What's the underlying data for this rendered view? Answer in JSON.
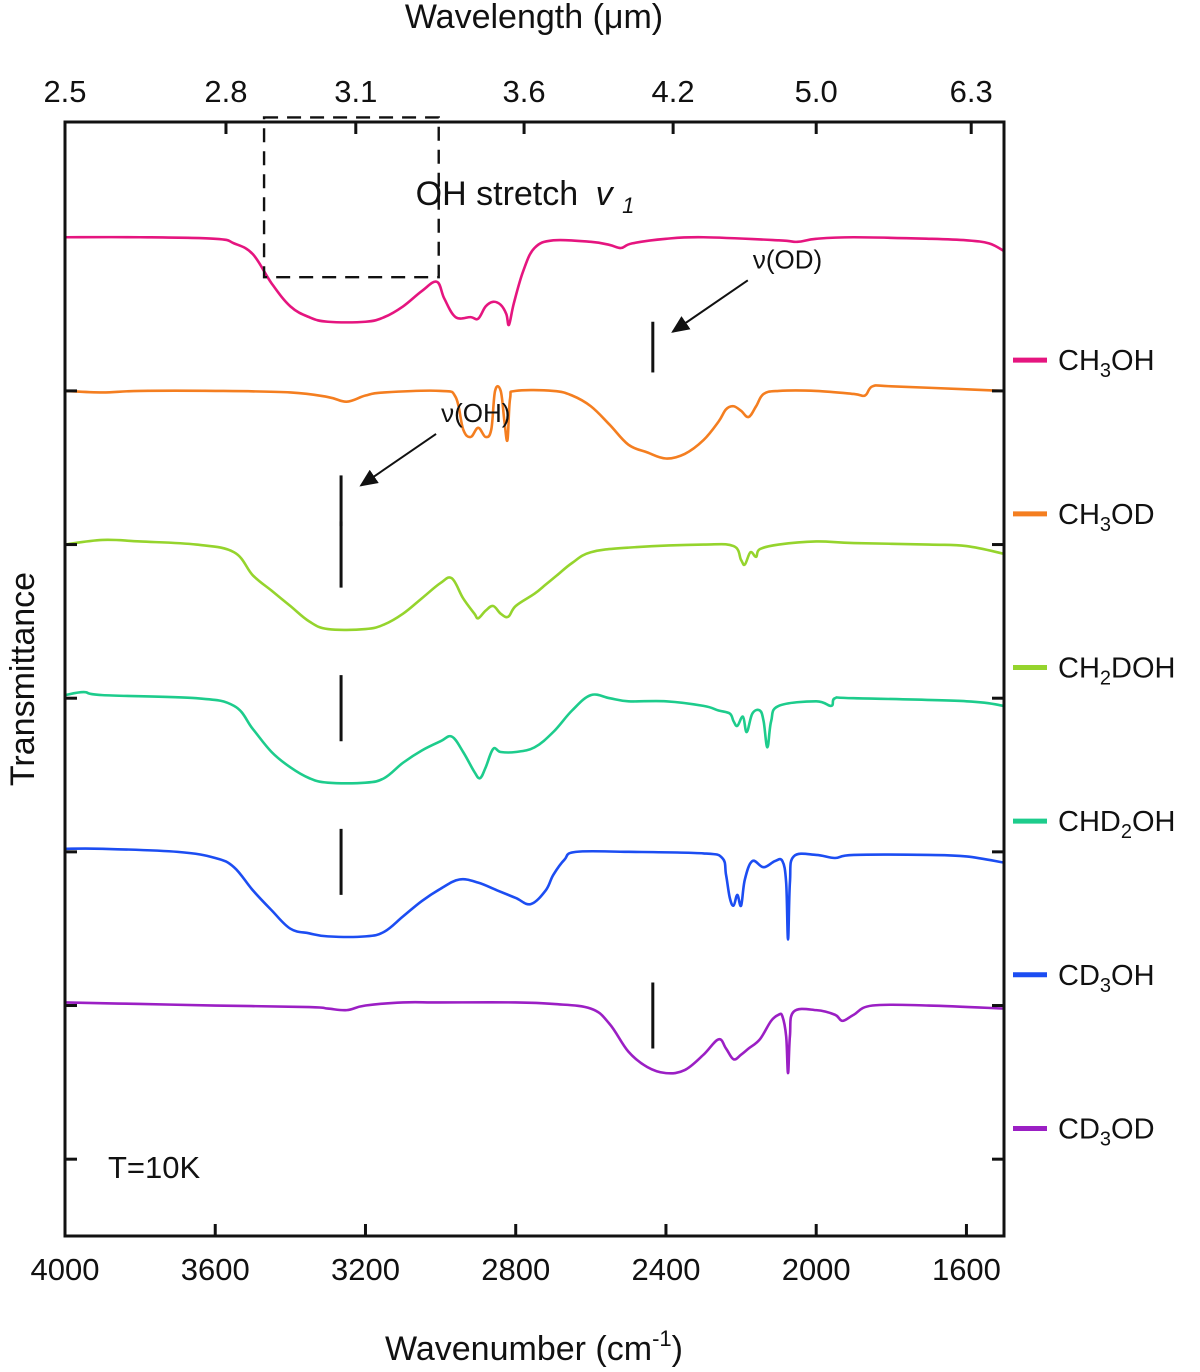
{
  "chart_data": {
    "type": "line",
    "title": "OH stretch",
    "title_symbol": "v",
    "title_symbol_sub": "1",
    "xlabel": "Wavenumber (cm",
    "xlabel_sup": "-1",
    "xlabel_close": ")",
    "x2label": "Wavelength (μm)",
    "ylabel": "Transmittance",
    "xlim": [
      4000,
      1500
    ],
    "x_ticks": [
      4000,
      3600,
      3200,
      2800,
      2400,
      2000,
      1600
    ],
    "x_tick_labels": [
      "4000",
      "3600",
      "3200",
      "2800",
      "2400",
      "2000",
      "1600"
    ],
    "x2_ticks_um": [
      2.5,
      2.8,
      3.1,
      3.6,
      4.2,
      5.0,
      6.3
    ],
    "x2_tick_labels": [
      "2.5",
      "2.8",
      "3.1",
      "3.6",
      "4.2",
      "5.0",
      "6.3"
    ],
    "y_units": "offset transmittance (arbitrary), one trace per 1 unit",
    "y_ticks": [
      0.5,
      1.5,
      2.5,
      3.5,
      4.5,
      5.5
    ],
    "y_range": [
      0,
      7.25
    ],
    "temperature_label": "T=10K",
    "annotations": [
      {
        "label": "ν(OD)",
        "series": "CH3OD",
        "x": 2435
      },
      {
        "label": "ν(OH)",
        "series": "CH2DOH",
        "x": 3265
      }
    ],
    "markers": [
      {
        "series": "CH2DOH",
        "x": 3265
      },
      {
        "series": "CHD2OH",
        "x": 3265
      },
      {
        "series": "CD3OH",
        "x": 3265
      },
      {
        "series": "CD3OD",
        "x": 2435
      }
    ],
    "highlight_box": {
      "x": [
        3470,
        3005
      ],
      "series": "CH3OH"
    },
    "series": [
      {
        "name": "CH3OH",
        "main": "CH",
        "sub1": "3",
        "tail": "OH",
        "color": "#e5157f",
        "points": [
          [
            4000,
            6.5
          ],
          [
            3800,
            6.5
          ],
          [
            3600,
            6.49
          ],
          [
            3550,
            6.46
          ],
          [
            3500,
            6.39
          ],
          [
            3450,
            6.2
          ],
          [
            3400,
            6.05
          ],
          [
            3350,
            5.98
          ],
          [
            3300,
            5.95
          ],
          [
            3200,
            5.95
          ],
          [
            3150,
            5.98
          ],
          [
            3100,
            6.05
          ],
          [
            3050,
            6.15
          ],
          [
            3010,
            6.21
          ],
          [
            2990,
            6.1
          ],
          [
            2960,
            5.98
          ],
          [
            2920,
            5.98
          ],
          [
            2900,
            5.97
          ],
          [
            2880,
            6.05
          ],
          [
            2860,
            6.08
          ],
          [
            2840,
            6.06
          ],
          [
            2825,
            6.0
          ],
          [
            2818,
            5.93
          ],
          [
            2805,
            6.07
          ],
          [
            2780,
            6.28
          ],
          [
            2750,
            6.43
          ],
          [
            2700,
            6.48
          ],
          [
            2600,
            6.47
          ],
          [
            2550,
            6.45
          ],
          [
            2520,
            6.43
          ],
          [
            2490,
            6.46
          ],
          [
            2400,
            6.49
          ],
          [
            2300,
            6.5
          ],
          [
            2100,
            6.48
          ],
          [
            2050,
            6.47
          ],
          [
            2000,
            6.49
          ],
          [
            1900,
            6.5
          ],
          [
            1700,
            6.49
          ],
          [
            1600,
            6.48
          ],
          [
            1540,
            6.46
          ],
          [
            1500,
            6.41
          ]
        ]
      },
      {
        "name": "CH3OD",
        "main": "CH",
        "sub1": "3",
        "tail": "OD",
        "color": "#f47e20",
        "points": [
          [
            4000,
            5.5
          ],
          [
            3900,
            5.49
          ],
          [
            3800,
            5.5
          ],
          [
            3600,
            5.5
          ],
          [
            3400,
            5.49
          ],
          [
            3300,
            5.46
          ],
          [
            3250,
            5.43
          ],
          [
            3200,
            5.47
          ],
          [
            3150,
            5.49
          ],
          [
            3000,
            5.5
          ],
          [
            2960,
            5.46
          ],
          [
            2940,
            5.25
          ],
          [
            2920,
            5.2
          ],
          [
            2900,
            5.26
          ],
          [
            2880,
            5.2
          ],
          [
            2865,
            5.25
          ],
          [
            2855,
            5.5
          ],
          [
            2840,
            5.5
          ],
          [
            2830,
            5.3
          ],
          [
            2822,
            5.18
          ],
          [
            2815,
            5.45
          ],
          [
            2800,
            5.5
          ],
          [
            2700,
            5.5
          ],
          [
            2650,
            5.47
          ],
          [
            2600,
            5.4
          ],
          [
            2550,
            5.28
          ],
          [
            2500,
            5.15
          ],
          [
            2450,
            5.1
          ],
          [
            2400,
            5.06
          ],
          [
            2350,
            5.09
          ],
          [
            2300,
            5.18
          ],
          [
            2260,
            5.3
          ],
          [
            2240,
            5.38
          ],
          [
            2220,
            5.4
          ],
          [
            2200,
            5.37
          ],
          [
            2180,
            5.33
          ],
          [
            2160,
            5.4
          ],
          [
            2140,
            5.48
          ],
          [
            2100,
            5.5
          ],
          [
            2000,
            5.5
          ],
          [
            1900,
            5.48
          ],
          [
            1870,
            5.47
          ],
          [
            1850,
            5.53
          ],
          [
            1800,
            5.53
          ],
          [
            1600,
            5.51
          ],
          [
            1500,
            5.5
          ]
        ]
      },
      {
        "name": "CH2DOH",
        "main": "CH",
        "sub1": "2",
        "tail": "DOH",
        "color": "#95d42d",
        "points": [
          [
            4000,
            4.5
          ],
          [
            3900,
            4.53
          ],
          [
            3800,
            4.52
          ],
          [
            3650,
            4.5
          ],
          [
            3550,
            4.45
          ],
          [
            3500,
            4.3
          ],
          [
            3450,
            4.2
          ],
          [
            3400,
            4.1
          ],
          [
            3350,
            4.0
          ],
          [
            3300,
            3.95
          ],
          [
            3200,
            3.95
          ],
          [
            3150,
            3.98
          ],
          [
            3100,
            4.05
          ],
          [
            3050,
            4.15
          ],
          [
            3000,
            4.25
          ],
          [
            2970,
            4.28
          ],
          [
            2940,
            4.15
          ],
          [
            2910,
            4.05
          ],
          [
            2900,
            4.02
          ],
          [
            2880,
            4.07
          ],
          [
            2860,
            4.1
          ],
          [
            2840,
            4.05
          ],
          [
            2820,
            4.03
          ],
          [
            2800,
            4.1
          ],
          [
            2750,
            4.18
          ],
          [
            2720,
            4.24
          ],
          [
            2690,
            4.3
          ],
          [
            2650,
            4.38
          ],
          [
            2600,
            4.45
          ],
          [
            2500,
            4.48
          ],
          [
            2300,
            4.5
          ],
          [
            2220,
            4.49
          ],
          [
            2200,
            4.4
          ],
          [
            2190,
            4.37
          ],
          [
            2175,
            4.45
          ],
          [
            2160,
            4.42
          ],
          [
            2150,
            4.47
          ],
          [
            2100,
            4.5
          ],
          [
            2000,
            4.52
          ],
          [
            1900,
            4.51
          ],
          [
            1700,
            4.5
          ],
          [
            1600,
            4.49
          ],
          [
            1500,
            4.44
          ]
        ]
      },
      {
        "name": "CHD2OH",
        "main": "CHD",
        "sub1": "2",
        "tail": "OH",
        "color": "#1dcc8c",
        "points": [
          [
            4000,
            3.52
          ],
          [
            3950,
            3.54
          ],
          [
            3900,
            3.52
          ],
          [
            3650,
            3.5
          ],
          [
            3550,
            3.45
          ],
          [
            3500,
            3.3
          ],
          [
            3450,
            3.15
          ],
          [
            3400,
            3.05
          ],
          [
            3350,
            2.98
          ],
          [
            3300,
            2.95
          ],
          [
            3200,
            2.95
          ],
          [
            3150,
            2.98
          ],
          [
            3100,
            3.08
          ],
          [
            3050,
            3.16
          ],
          [
            3000,
            3.22
          ],
          [
            2970,
            3.25
          ],
          [
            2940,
            3.15
          ],
          [
            2910,
            3.02
          ],
          [
            2895,
            2.98
          ],
          [
            2880,
            3.05
          ],
          [
            2860,
            3.17
          ],
          [
            2840,
            3.15
          ],
          [
            2800,
            3.15
          ],
          [
            2750,
            3.18
          ],
          [
            2700,
            3.28
          ],
          [
            2650,
            3.42
          ],
          [
            2600,
            3.52
          ],
          [
            2550,
            3.5
          ],
          [
            2500,
            3.48
          ],
          [
            2400,
            3.48
          ],
          [
            2300,
            3.45
          ],
          [
            2260,
            3.42
          ],
          [
            2230,
            3.4
          ],
          [
            2220,
            3.35
          ],
          [
            2210,
            3.32
          ],
          [
            2195,
            3.38
          ],
          [
            2185,
            3.28
          ],
          [
            2170,
            3.4
          ],
          [
            2150,
            3.42
          ],
          [
            2140,
            3.35
          ],
          [
            2130,
            3.18
          ],
          [
            2120,
            3.35
          ],
          [
            2100,
            3.45
          ],
          [
            2000,
            3.48
          ],
          [
            1960,
            3.45
          ],
          [
            1950,
            3.5
          ],
          [
            1900,
            3.5
          ],
          [
            1600,
            3.48
          ],
          [
            1500,
            3.45
          ]
        ]
      },
      {
        "name": "CD3OH",
        "main": "CD",
        "sub1": "3",
        "tail": "OH",
        "color": "#1c4df2",
        "points": [
          [
            4000,
            2.52
          ],
          [
            3900,
            2.52
          ],
          [
            3700,
            2.5
          ],
          [
            3600,
            2.46
          ],
          [
            3550,
            2.4
          ],
          [
            3500,
            2.25
          ],
          [
            3450,
            2.12
          ],
          [
            3400,
            2.0
          ],
          [
            3350,
            1.97
          ],
          [
            3300,
            1.95
          ],
          [
            3200,
            1.95
          ],
          [
            3150,
            1.98
          ],
          [
            3100,
            2.08
          ],
          [
            3050,
            2.18
          ],
          [
            3000,
            2.26
          ],
          [
            2950,
            2.32
          ],
          [
            2900,
            2.3
          ],
          [
            2850,
            2.25
          ],
          [
            2800,
            2.2
          ],
          [
            2760,
            2.16
          ],
          [
            2720,
            2.25
          ],
          [
            2700,
            2.35
          ],
          [
            2670,
            2.45
          ],
          [
            2640,
            2.5
          ],
          [
            2500,
            2.5
          ],
          [
            2300,
            2.49
          ],
          [
            2250,
            2.46
          ],
          [
            2240,
            2.35
          ],
          [
            2230,
            2.2
          ],
          [
            2220,
            2.15
          ],
          [
            2210,
            2.22
          ],
          [
            2200,
            2.15
          ],
          [
            2190,
            2.32
          ],
          [
            2170,
            2.44
          ],
          [
            2140,
            2.4
          ],
          [
            2110,
            2.44
          ],
          [
            2090,
            2.44
          ],
          [
            2080,
            2.3
          ],
          [
            2075,
            1.93
          ],
          [
            2070,
            2.3
          ],
          [
            2060,
            2.47
          ],
          [
            2000,
            2.48
          ],
          [
            1950,
            2.46
          ],
          [
            1900,
            2.48
          ],
          [
            1700,
            2.48
          ],
          [
            1600,
            2.47
          ],
          [
            1500,
            2.43
          ]
        ]
      },
      {
        "name": "CD3OD",
        "main": "CD",
        "sub1": "3",
        "tail": "OD",
        "color": "#9b1fc4",
        "points": [
          [
            4000,
            1.52
          ],
          [
            3800,
            1.51
          ],
          [
            3600,
            1.5
          ],
          [
            3350,
            1.49
          ],
          [
            3300,
            1.48
          ],
          [
            3250,
            1.47
          ],
          [
            3200,
            1.5
          ],
          [
            3100,
            1.52
          ],
          [
            3000,
            1.52
          ],
          [
            2800,
            1.52
          ],
          [
            2700,
            1.51
          ],
          [
            2600,
            1.48
          ],
          [
            2550,
            1.38
          ],
          [
            2500,
            1.2
          ],
          [
            2450,
            1.1
          ],
          [
            2400,
            1.06
          ],
          [
            2350,
            1.08
          ],
          [
            2300,
            1.18
          ],
          [
            2260,
            1.28
          ],
          [
            2240,
            1.22
          ],
          [
            2220,
            1.15
          ],
          [
            2200,
            1.18
          ],
          [
            2180,
            1.22
          ],
          [
            2150,
            1.28
          ],
          [
            2120,
            1.4
          ],
          [
            2100,
            1.44
          ],
          [
            2090,
            1.43
          ],
          [
            2080,
            1.3
          ],
          [
            2075,
            1.06
          ],
          [
            2070,
            1.3
          ],
          [
            2060,
            1.46
          ],
          [
            2000,
            1.47
          ],
          [
            1950,
            1.44
          ],
          [
            1930,
            1.4
          ],
          [
            1900,
            1.44
          ],
          [
            1850,
            1.5
          ],
          [
            1700,
            1.5
          ],
          [
            1500,
            1.48
          ]
        ]
      }
    ]
  }
}
